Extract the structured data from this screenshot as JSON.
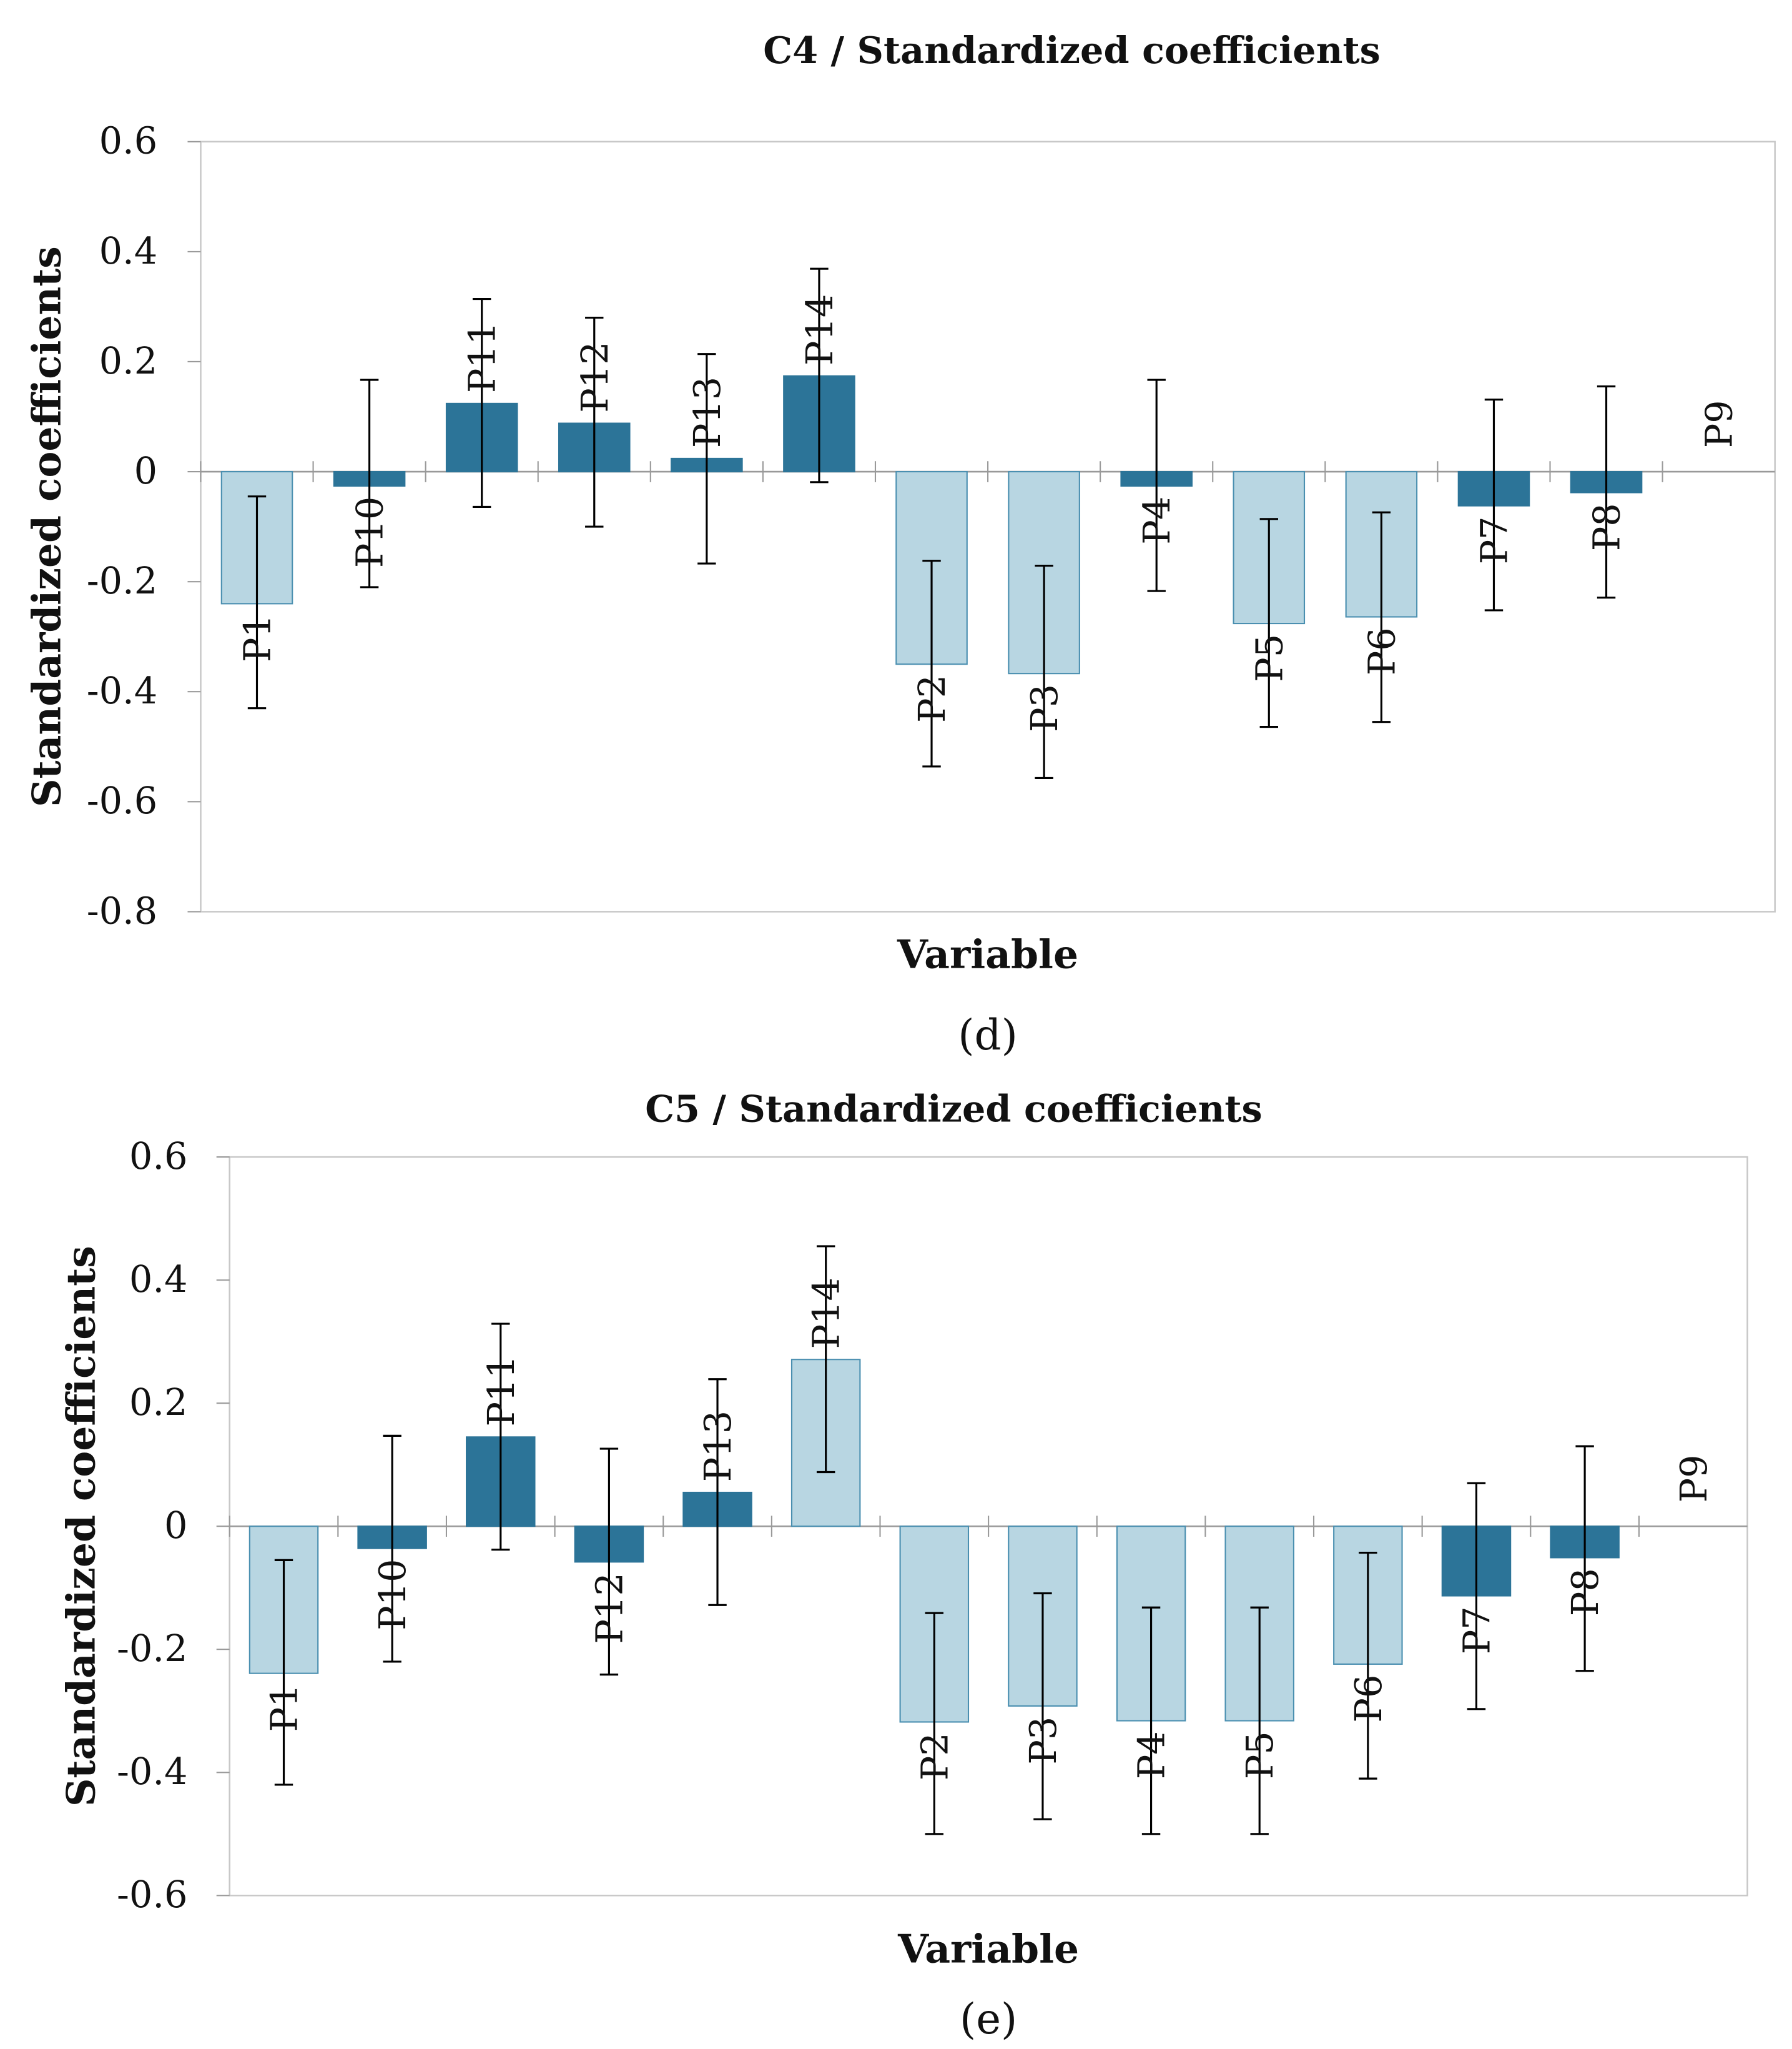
{
  "colors": {
    "significant": "#2c7498",
    "nonsignificant": "#b8d6e2",
    "edge_light": "#4a8fb0"
  },
  "chart_data": [
    {
      "type": "bar",
      "title": "C4 / Standardized coefficients",
      "xlabel": "Variable",
      "ylabel": "Standardized coefficients",
      "panel": "(d)",
      "ylim": [
        -0.8,
        0.6
      ],
      "yticks": [
        0.6,
        0.4,
        0.2,
        0,
        -0.2,
        -0.4,
        -0.6,
        -0.8
      ],
      "ytick_labels": [
        "0.6",
        "0.4",
        "0.2",
        "0",
        "-0.2",
        "-0.4",
        "-0.6",
        "-0.8"
      ],
      "categories": [
        "P1",
        "P10",
        "P11",
        "P12",
        "P13",
        "P14",
        "P2",
        "P3",
        "P4",
        "P5",
        "P6",
        "P7",
        "P8",
        "P9"
      ],
      "values": [
        -0.24,
        -0.026,
        0.124,
        0.088,
        0.024,
        0.174,
        -0.35,
        -0.367,
        -0.026,
        -0.276,
        -0.264,
        -0.062,
        -0.038,
        0
      ],
      "err_low": [
        -0.43,
        -0.21,
        -0.064,
        -0.1,
        -0.167,
        -0.019,
        -0.536,
        -0.557,
        -0.217,
        -0.464,
        -0.455,
        -0.252,
        -0.229,
        null
      ],
      "err_high": [
        -0.045,
        0.167,
        0.314,
        0.28,
        0.214,
        0.369,
        -0.162,
        -0.171,
        0.167,
        -0.086,
        -0.074,
        0.131,
        0.155,
        null
      ],
      "significant": [
        false,
        true,
        true,
        true,
        true,
        true,
        false,
        false,
        true,
        false,
        false,
        true,
        true,
        true
      ]
    },
    {
      "type": "bar",
      "title": "C5 / Standardized coefficients",
      "xlabel": "Variable",
      "ylabel": "Standardized coefficients",
      "panel": "(e)",
      "ylim": [
        -0.6,
        0.6
      ],
      "yticks": [
        0.6,
        0.4,
        0.2,
        0,
        -0.2,
        -0.4,
        -0.6
      ],
      "ytick_labels": [
        "0.6",
        "0.4",
        "0.2",
        "0",
        "-0.2",
        "-0.4",
        "-0.6"
      ],
      "categories": [
        "P1",
        "P10",
        "P11",
        "P12",
        "P13",
        "P14",
        "P2",
        "P3",
        "P4",
        "P5",
        "P6",
        "P7",
        "P8",
        "P9"
      ],
      "values": [
        -0.239,
        -0.036,
        0.145,
        -0.058,
        0.055,
        0.271,
        -0.318,
        -0.292,
        -0.316,
        -0.316,
        -0.224,
        -0.113,
        -0.051,
        0
      ],
      "err_low": [
        -0.42,
        -0.22,
        -0.038,
        -0.241,
        -0.128,
        0.088,
        -0.5,
        -0.476,
        -0.5,
        -0.5,
        -0.41,
        -0.297,
        -0.235,
        null
      ],
      "err_high": [
        -0.055,
        0.147,
        0.329,
        0.126,
        0.239,
        0.455,
        -0.141,
        -0.109,
        -0.132,
        -0.132,
        -0.043,
        0.07,
        0.13,
        null
      ],
      "significant": [
        false,
        true,
        true,
        true,
        true,
        false,
        false,
        false,
        false,
        false,
        false,
        true,
        true,
        true
      ]
    }
  ]
}
